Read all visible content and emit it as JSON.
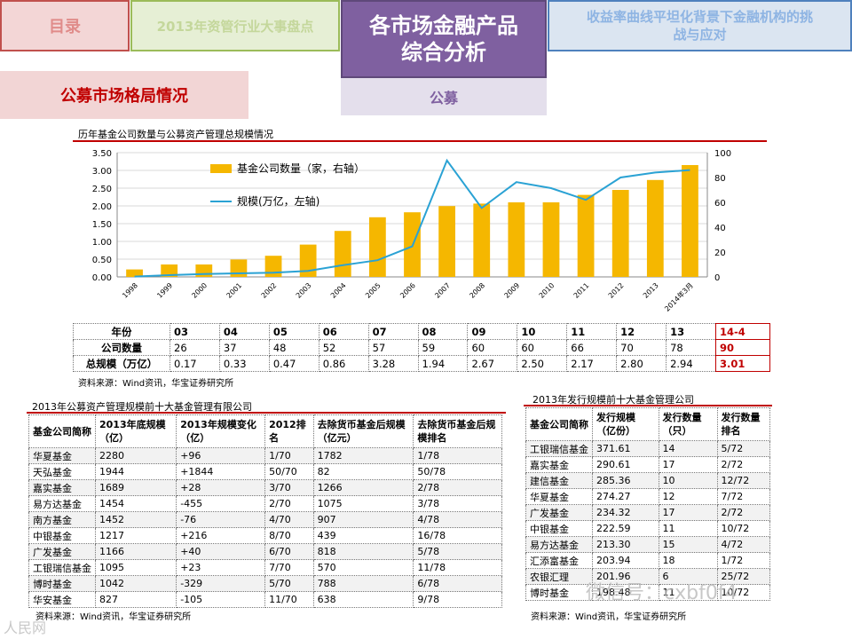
{
  "nav": {
    "tab_toc": "目录",
    "tab_review": "2013年资管行业大事盘点",
    "tab_products_l1": "各市场金融产品",
    "tab_products_l2": "综合分析",
    "tab_yield_l1": "收益率曲线平坦化背景下金融机构的挑",
    "tab_yield_l2": "战与应对",
    "section": "公募市场格局情况",
    "subtab": "公募"
  },
  "chart": {
    "title": "历年基金公司数量与公募资产管理总规模情况"
  },
  "chart_data": {
    "type": "bar",
    "categories": [
      "1998",
      "1999",
      "2000",
      "2001",
      "2002",
      "2003",
      "2004",
      "2005",
      "2006",
      "2007",
      "2008",
      "2009",
      "2010",
      "2011",
      "2012",
      "2013",
      "2014年3月"
    ],
    "series": [
      {
        "name": "基金公司数量（家，右轴）",
        "type": "bar",
        "axis": "right",
        "values": [
          6,
          10,
          10,
          14,
          17,
          26,
          37,
          48,
          52,
          57,
          59,
          60,
          60,
          66,
          70,
          78,
          90
        ]
      },
      {
        "name": "规模(万亿，左轴)",
        "type": "line",
        "axis": "left",
        "values": [
          0.01,
          0.05,
          0.08,
          0.1,
          0.12,
          0.17,
          0.33,
          0.47,
          0.86,
          3.28,
          1.94,
          2.67,
          2.5,
          2.17,
          2.8,
          2.94,
          3.01
        ]
      }
    ],
    "ylim_left": [
      0,
      3.5
    ],
    "yticks_left": [
      "0.00",
      "0.50",
      "1.00",
      "1.50",
      "2.00",
      "2.50",
      "3.00",
      "3.50"
    ],
    "ylim_right": [
      0,
      100
    ],
    "yticks_right": [
      "0",
      "20",
      "40",
      "60",
      "80",
      "100"
    ],
    "legend_position": "upper-left",
    "colors": {
      "bar": "#f5b700",
      "line": "#2aa2d4"
    }
  },
  "year_table": {
    "rows": [
      {
        "label": "年份",
        "cells": [
          "03",
          "04",
          "05",
          "06",
          "07",
          "08",
          "09",
          "10",
          "11",
          "12",
          "13"
        ],
        "extra": "14-4"
      },
      {
        "label": "公司数量",
        "cells": [
          "26",
          "37",
          "48",
          "52",
          "57",
          "59",
          "60",
          "60",
          "66",
          "70",
          "78"
        ],
        "extra": "90"
      },
      {
        "label": "总规模（万亿）",
        "cells": [
          "0.17",
          "0.33",
          "0.47",
          "0.86",
          "3.28",
          "1.94",
          "2.67",
          "2.50",
          "2.17",
          "2.80",
          "2.94"
        ],
        "extra": "3.01"
      }
    ],
    "source": "资料来源：Wind资讯，华宝证券研究所"
  },
  "table_scale": {
    "title": "2013年公募资产管理规模前十大基金管理有限公司",
    "headers": [
      "基金公司简称",
      "2013年底规模（亿）",
      "2013年规模变化（亿）",
      "2012排名",
      "去除货币基金后规模（亿元）",
      "去除货币基金后规模排名"
    ],
    "rows": [
      [
        "华夏基金",
        "2280",
        "+96",
        "1/70",
        "1782",
        "1/78"
      ],
      [
        "天弘基金",
        "1944",
        "+1844",
        "50/70",
        "82",
        "50/78"
      ],
      [
        "嘉实基金",
        "1689",
        "+28",
        "3/70",
        "1266",
        "2/78"
      ],
      [
        "易方达基金",
        "1454",
        "-455",
        "2/70",
        "1075",
        "3/78"
      ],
      [
        "南方基金",
        "1452",
        "-76",
        "4/70",
        "907",
        "4/78"
      ],
      [
        "中银基金",
        "1217",
        "+216",
        "8/70",
        "439",
        "16/78"
      ],
      [
        "广发基金",
        "1166",
        "+40",
        "6/70",
        "818",
        "5/78"
      ],
      [
        "工银瑞信基金",
        "1095",
        "+23",
        "7/70",
        "570",
        "11/78"
      ],
      [
        "博时基金",
        "1042",
        "-329",
        "5/70",
        "788",
        "6/78"
      ],
      [
        "华安基金",
        "827",
        "-105",
        "11/70",
        "638",
        "9/78"
      ]
    ],
    "source": "资料来源：Wind资讯，华宝证券研究所"
  },
  "table_issue": {
    "title": "2013年发行规模前十大基金管理公司",
    "headers": [
      "基金公司简称",
      "发行规模（亿份）",
      "发行数量（只）",
      "发行数量排名"
    ],
    "rows": [
      [
        "工银瑞信基金",
        "371.61",
        "14",
        "5/72"
      ],
      [
        "嘉实基金",
        "290.61",
        "17",
        "2/72"
      ],
      [
        "建信基金",
        "285.36",
        "10",
        "12/72"
      ],
      [
        "华夏基金",
        "274.27",
        "12",
        "7/72"
      ],
      [
        "广发基金",
        "234.32",
        "17",
        "2/72"
      ],
      [
        "中银基金",
        "222.59",
        "11",
        "10/72"
      ],
      [
        "易方达基金",
        "213.30",
        "15",
        "4/72"
      ],
      [
        "汇添富基金",
        "203.94",
        "18",
        "1/72"
      ],
      [
        "农银汇理",
        "201.96",
        "6",
        "25/72"
      ],
      [
        "博时基金",
        "198.48",
        "11",
        "10/72"
      ]
    ],
    "source": "资料来源：Wind资讯，华宝证券研究所"
  },
  "watermarks": {
    "bottom_left": "人民网",
    "bottom_right": "微信号：cxbf0f4"
  }
}
